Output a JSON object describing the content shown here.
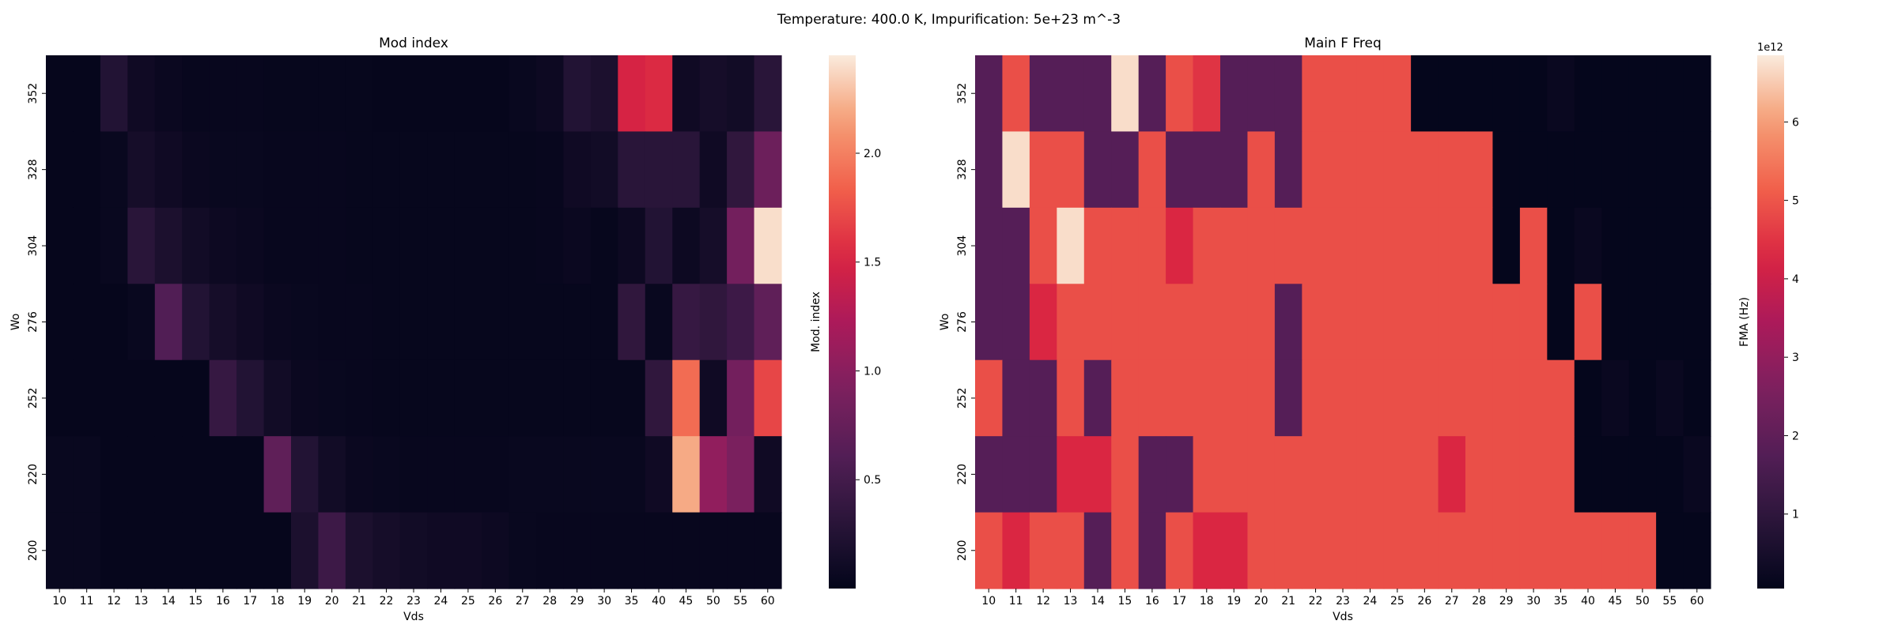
{
  "suptitle": "Temperature: 400.0 K, Impurification: 5e+23 m^-3",
  "chart_data": [
    {
      "type": "heatmap",
      "title": "Mod index",
      "xlabel": "Vds",
      "ylabel": "Wo",
      "x_categories": [
        "10",
        "11",
        "12",
        "13",
        "14",
        "15",
        "16",
        "17",
        "18",
        "19",
        "20",
        "21",
        "22",
        "23",
        "24",
        "25",
        "26",
        "27",
        "28",
        "29",
        "30",
        "35",
        "40",
        "45",
        "50",
        "55",
        "60"
      ],
      "y_categories": [
        "352",
        "328",
        "304",
        "276",
        "252",
        "220",
        "200"
      ],
      "colorbar": {
        "label": "Mod. index",
        "ticks": [
          0.5,
          1.0,
          1.5,
          2.0
        ],
        "tick_labels": [
          "0.5",
          "1.0",
          "1.5",
          "2.0"
        ],
        "range": [
          0.0,
          2.45
        ],
        "offset_text": ""
      },
      "colormap": "rocket",
      "values": [
        [
          0.02,
          0.02,
          0.25,
          0.1,
          0.06,
          0.04,
          0.04,
          0.04,
          0.03,
          0.03,
          0.03,
          0.03,
          0.02,
          0.02,
          0.02,
          0.02,
          0.02,
          0.05,
          0.08,
          0.25,
          0.2,
          1.5,
          1.55,
          0.1,
          0.15,
          0.12,
          0.3
        ],
        [
          0.02,
          0.02,
          0.05,
          0.15,
          0.1,
          0.06,
          0.05,
          0.05,
          0.04,
          0.04,
          0.04,
          0.03,
          0.03,
          0.03,
          0.03,
          0.03,
          0.03,
          0.03,
          0.04,
          0.1,
          0.12,
          0.3,
          0.3,
          0.3,
          0.1,
          0.35,
          0.8
        ],
        [
          0.02,
          0.02,
          0.05,
          0.3,
          0.2,
          0.12,
          0.08,
          0.06,
          0.04,
          0.04,
          0.04,
          0.03,
          0.03,
          0.03,
          0.03,
          0.03,
          0.03,
          0.03,
          0.04,
          0.06,
          0.03,
          0.08,
          0.25,
          0.08,
          0.15,
          0.85,
          2.4
        ],
        [
          0.02,
          0.02,
          0.02,
          0.05,
          0.6,
          0.25,
          0.15,
          0.1,
          0.06,
          0.05,
          0.04,
          0.04,
          0.03,
          0.03,
          0.03,
          0.03,
          0.03,
          0.03,
          0.03,
          0.03,
          0.03,
          0.35,
          0.05,
          0.4,
          0.35,
          0.45,
          0.7
        ],
        [
          0.02,
          0.02,
          0.02,
          0.02,
          0.02,
          0.02,
          0.4,
          0.25,
          0.12,
          0.06,
          0.05,
          0.04,
          0.03,
          0.03,
          0.03,
          0.03,
          0.03,
          0.03,
          0.03,
          0.03,
          0.03,
          0.03,
          0.35,
          1.9,
          0.1,
          0.85,
          1.7
        ],
        [
          0.05,
          0.05,
          0.02,
          0.02,
          0.02,
          0.02,
          0.02,
          0.02,
          0.7,
          0.25,
          0.12,
          0.06,
          0.05,
          0.04,
          0.04,
          0.04,
          0.04,
          0.05,
          0.05,
          0.05,
          0.05,
          0.05,
          0.1,
          2.2,
          1.05,
          0.9,
          0.1
        ],
        [
          0.05,
          0.05,
          0.02,
          0.02,
          0.02,
          0.02,
          0.02,
          0.02,
          0.02,
          0.2,
          0.45,
          0.2,
          0.15,
          0.12,
          0.1,
          0.1,
          0.08,
          0.05,
          0.04,
          0.04,
          0.04,
          0.04,
          0.04,
          0.04,
          0.04,
          0.04,
          0.04
        ]
      ]
    },
    {
      "type": "heatmap",
      "title": "Main F Freq",
      "xlabel": "Vds",
      "ylabel": "Wo",
      "x_categories": [
        "10",
        "11",
        "12",
        "13",
        "14",
        "15",
        "16",
        "17",
        "18",
        "19",
        "20",
        "21",
        "22",
        "23",
        "24",
        "25",
        "26",
        "27",
        "28",
        "29",
        "30",
        "35",
        "40",
        "45",
        "50",
        "55",
        "60"
      ],
      "y_categories": [
        "352",
        "328",
        "304",
        "276",
        "252",
        "220",
        "200"
      ],
      "colorbar": {
        "label": "FMA (Hz)",
        "ticks": [
          1,
          2,
          3,
          4,
          5,
          6
        ],
        "tick_labels": [
          "1",
          "2",
          "3",
          "4",
          "5",
          "6"
        ],
        "range": [
          0.05,
          6.85
        ],
        "offset_text": "1e12"
      },
      "colormap": "rocket",
      "values": [
        [
          1.8,
          4.9,
          1.8,
          1.8,
          1.8,
          6.7,
          1.8,
          4.9,
          4.5,
          1.8,
          1.8,
          1.8,
          4.9,
          4.9,
          4.9,
          4.9,
          0.1,
          0.1,
          0.1,
          0.1,
          0.1,
          0.2,
          0.1,
          0.1,
          0.1,
          0.1,
          0.1
        ],
        [
          1.8,
          6.7,
          4.9,
          4.9,
          1.8,
          1.8,
          4.9,
          1.8,
          1.8,
          1.8,
          4.9,
          1.8,
          4.9,
          4.9,
          4.9,
          4.9,
          4.9,
          4.9,
          4.9,
          0.1,
          0.1,
          0.1,
          0.1,
          0.1,
          0.1,
          0.1,
          0.1
        ],
        [
          1.8,
          1.8,
          4.9,
          6.7,
          4.9,
          4.9,
          4.9,
          4.3,
          4.9,
          4.9,
          4.9,
          4.9,
          4.9,
          4.9,
          4.9,
          4.9,
          4.9,
          4.9,
          4.9,
          0.1,
          4.9,
          0.1,
          0.2,
          0.1,
          0.1,
          0.1,
          0.1
        ],
        [
          1.8,
          1.8,
          4.3,
          4.9,
          4.9,
          4.9,
          4.9,
          4.9,
          4.9,
          4.9,
          4.9,
          1.8,
          4.9,
          4.9,
          4.9,
          4.9,
          4.9,
          4.9,
          4.9,
          4.9,
          4.9,
          0.1,
          4.9,
          0.1,
          0.1,
          0.1,
          0.1
        ],
        [
          4.9,
          1.8,
          1.8,
          4.9,
          1.8,
          4.9,
          4.9,
          4.9,
          4.9,
          4.9,
          4.9,
          1.8,
          4.9,
          4.9,
          4.9,
          4.9,
          4.9,
          4.9,
          4.9,
          4.9,
          4.9,
          4.9,
          0.1,
          0.2,
          0.1,
          0.2,
          0.1
        ],
        [
          1.8,
          1.8,
          1.8,
          4.3,
          4.3,
          4.9,
          1.8,
          1.8,
          4.9,
          4.9,
          4.9,
          4.9,
          4.9,
          4.9,
          4.9,
          4.9,
          4.9,
          4.3,
          4.9,
          4.9,
          4.9,
          4.9,
          0.1,
          0.1,
          0.1,
          0.1,
          0.2
        ],
        [
          4.9,
          4.3,
          4.9,
          4.9,
          1.8,
          4.9,
          1.8,
          4.9,
          4.3,
          4.3,
          4.9,
          4.9,
          4.9,
          4.9,
          4.9,
          4.9,
          4.9,
          4.9,
          4.9,
          4.9,
          4.9,
          4.9,
          4.9,
          4.9,
          4.9,
          0.1,
          0.1
        ]
      ]
    }
  ]
}
